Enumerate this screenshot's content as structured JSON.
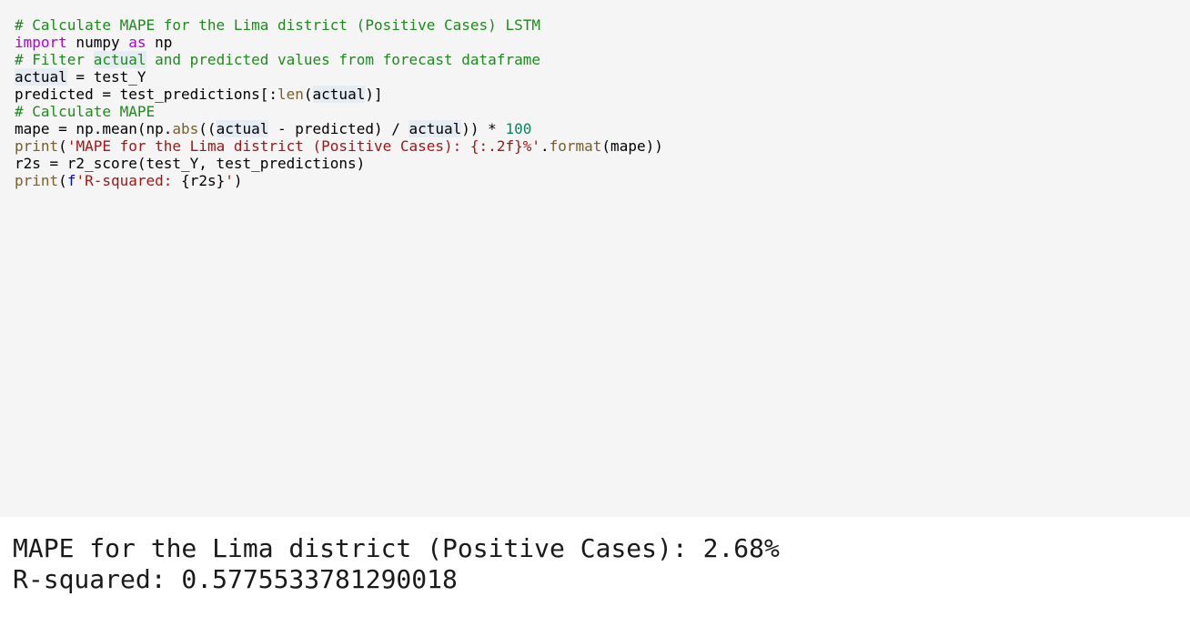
{
  "code": {
    "lines": [
      [
        {
          "text": "# Calculate MAPE for the Lima district (Positive Cases) LSTM",
          "color": "#1e8a1e"
        }
      ],
      [
        {
          "text": "import",
          "color": "#af00db"
        },
        {
          "text": " numpy ",
          "color": "#000000"
        },
        {
          "text": "as",
          "color": "#af00db"
        },
        {
          "text": " np",
          "color": "#000000"
        }
      ],
      [],
      [
        {
          "text": "# Filter ",
          "color": "#1e8a1e"
        },
        {
          "text": "actual",
          "color": "#1e8a1e",
          "highlight": true
        },
        {
          "text": " and predicted values from forecast dataframe",
          "color": "#1e8a1e"
        }
      ],
      [
        {
          "text": "actual",
          "color": "#000000",
          "highlight": true
        },
        {
          "text": " = test_Y",
          "color": "#000000"
        }
      ],
      [
        {
          "text": "predicted = test_predictions[:",
          "color": "#000000"
        },
        {
          "text": "len",
          "color": "#795e26"
        },
        {
          "text": "(",
          "color": "#000000"
        },
        {
          "text": "actual",
          "color": "#000000",
          "highlight": true
        },
        {
          "text": ")]",
          "color": "#000000"
        }
      ],
      [],
      [
        {
          "text": "# Calculate MAPE",
          "color": "#1e8a1e"
        }
      ],
      [
        {
          "text": "mape = np.mean(np.",
          "color": "#000000"
        },
        {
          "text": "abs",
          "color": "#795e26"
        },
        {
          "text": "((",
          "color": "#000000"
        },
        {
          "text": "actual",
          "color": "#000000",
          "highlight": true
        },
        {
          "text": " - predicted) / ",
          "color": "#000000"
        },
        {
          "text": "actual",
          "color": "#000000",
          "highlight": true
        },
        {
          "text": ")) * ",
          "color": "#000000"
        },
        {
          "text": "100",
          "color": "#098658"
        }
      ],
      [],
      [
        {
          "text": "print",
          "color": "#795e26"
        },
        {
          "text": "(",
          "color": "#000000"
        },
        {
          "text": "'MAPE for the Lima district (Positive Cases): {:.2f}%'",
          "color": "#a31515"
        },
        {
          "text": ".",
          "color": "#000000"
        },
        {
          "text": "format",
          "color": "#795e26"
        },
        {
          "text": "(mape))",
          "color": "#000000"
        }
      ],
      [],
      [
        {
          "text": "r2s = r2_score(test_Y, test_predictions)",
          "color": "#000000"
        }
      ],
      [
        {
          "text": "print",
          "color": "#795e26"
        },
        {
          "text": "(",
          "color": "#000000"
        },
        {
          "text": "f",
          "color": "#0000ff"
        },
        {
          "text": "'R-squared: ",
          "color": "#a31515"
        },
        {
          "text": "{r2s}",
          "color": "#000000"
        },
        {
          "text": "'",
          "color": "#a31515"
        },
        {
          "text": ")",
          "color": "#000000"
        }
      ]
    ]
  },
  "output": {
    "lines": [
      "MAPE for the Lima district (Positive Cases): 2.68%",
      "R-squared: 0.5775533781290018"
    ]
  }
}
